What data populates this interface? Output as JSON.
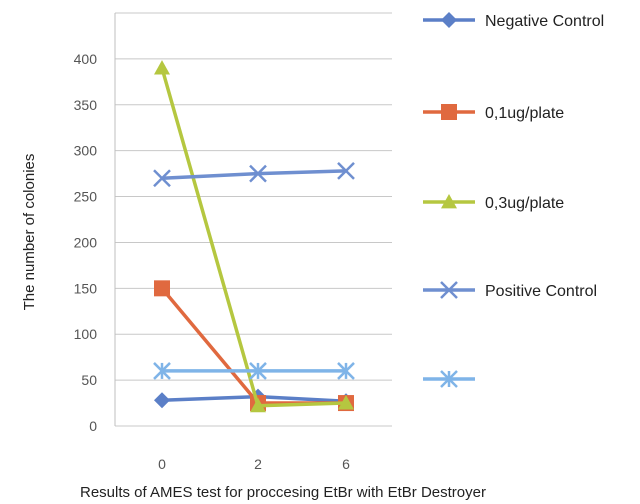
{
  "chart_data": {
    "type": "line",
    "title": "",
    "xlabel": "Results of AMES test for proccesing EtBr with EtBr Destroyer",
    "ylabel": "The number of colonies",
    "categories": [
      "0",
      "2",
      "6"
    ],
    "ylim": [
      0,
      450
    ],
    "yticks": [
      0,
      50,
      100,
      150,
      200,
      250,
      300,
      350,
      400
    ],
    "grid": true,
    "legend_position": "right",
    "series": [
      {
        "name": "Negative Control",
        "values": [
          28,
          32,
          27
        ],
        "color": "#5b7fc7",
        "marker": "diamond"
      },
      {
        "name": "0,1ug/plate",
        "values": [
          150,
          25,
          25
        ],
        "color": "#e0693f",
        "marker": "square"
      },
      {
        "name": "0,3ug/plate",
        "values": [
          390,
          22,
          25
        ],
        "color": "#b5c740",
        "marker": "triangle"
      },
      {
        "name": "Positive Control",
        "values": [
          270,
          275,
          278
        ],
        "color": "#6f8fd0",
        "marker": "x"
      },
      {
        "name": "",
        "values": [
          60,
          60,
          60
        ],
        "color": "#7fb4e8",
        "marker": "star"
      }
    ]
  }
}
